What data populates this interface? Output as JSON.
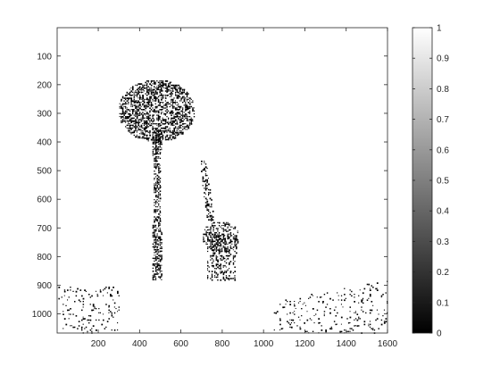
{
  "chart_data": {
    "type": "heatmap",
    "title": "",
    "xlabel": "",
    "ylabel": "",
    "xlim": [
      1,
      1600
    ],
    "ylim": [
      1,
      1067
    ],
    "y_direction": "reversed",
    "x_ticks": [
      200,
      400,
      600,
      800,
      1000,
      1200,
      1400,
      1600
    ],
    "y_ticks": [
      100,
      200,
      300,
      400,
      500,
      600,
      700,
      800,
      900,
      1000
    ],
    "colorbar": {
      "colormap": "gray",
      "range": [
        0,
        1
      ],
      "ticks": [
        0,
        0.1,
        0.2,
        0.3,
        0.4,
        0.5,
        0.6,
        0.7,
        0.8,
        0.9,
        1
      ],
      "tick_labels": [
        "0",
        "0.1",
        "0.2",
        "0.3",
        "0.4",
        "0.5",
        "0.6",
        "0.7",
        "0.8",
        "0.9",
        "1"
      ]
    },
    "image_values": "binary: 1 = white background, 0 = black pixels",
    "regions": [
      {
        "name": "tree-canopy",
        "shape": "ellipse",
        "cx": 480,
        "cy": 290,
        "rx": 185,
        "ry": 110
      },
      {
        "name": "tree-trunk",
        "shape": "polygon",
        "points": [
          [
            460,
            350
          ],
          [
            505,
            350
          ],
          [
            500,
            600
          ],
          [
            510,
            880
          ],
          [
            455,
            880
          ],
          [
            465,
            600
          ]
        ]
      },
      {
        "name": "giraffe-neck",
        "shape": "polygon",
        "points": [
          [
            690,
            460
          ],
          [
            720,
            460
          ],
          [
            760,
            680
          ],
          [
            725,
            690
          ]
        ]
      },
      {
        "name": "giraffe-body",
        "shape": "ellipse",
        "cx": 790,
        "cy": 730,
        "rx": 90,
        "ry": 55
      },
      {
        "name": "giraffe-legs",
        "shape": "polygon",
        "points": [
          [
            720,
            720
          ],
          [
            870,
            720
          ],
          [
            860,
            880
          ],
          [
            720,
            880
          ]
        ]
      },
      {
        "name": "grass-left",
        "shape": "polygon",
        "points": [
          [
            0,
            900
          ],
          [
            300,
            900
          ],
          [
            300,
            1067
          ],
          [
            0,
            1067
          ]
        ]
      },
      {
        "name": "grass-right",
        "shape": "polygon",
        "points": [
          [
            1050,
            950
          ],
          [
            1600,
            880
          ],
          [
            1600,
            1067
          ],
          [
            1050,
            1067
          ]
        ]
      }
    ]
  }
}
